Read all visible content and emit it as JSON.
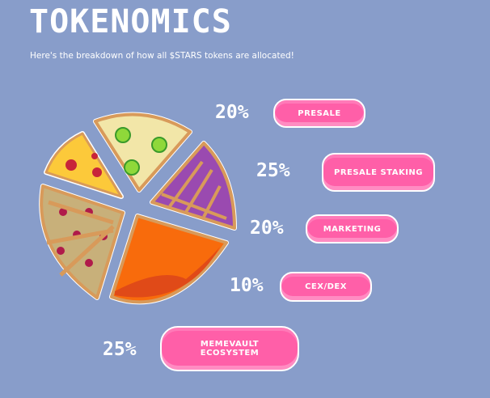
{
  "header": {
    "title": "TOKENOMICS",
    "subtitle": "Here's the breakdown of how all $STARS tokens are allocated!"
  },
  "allocations": [
    {
      "percent": "20%",
      "label": "PRESALE"
    },
    {
      "percent": "25%",
      "label": "PRESALE STAKING"
    },
    {
      "percent": "20%",
      "label": "MARKETING"
    },
    {
      "percent": "10%",
      "label": "CEX/DEX"
    },
    {
      "percent": "25%",
      "label": "MEMEVAULT ECOSYSTEM"
    }
  ],
  "colors": {
    "background": "#889dca",
    "pill": "#ff5fa8",
    "text": "#ffffff"
  }
}
